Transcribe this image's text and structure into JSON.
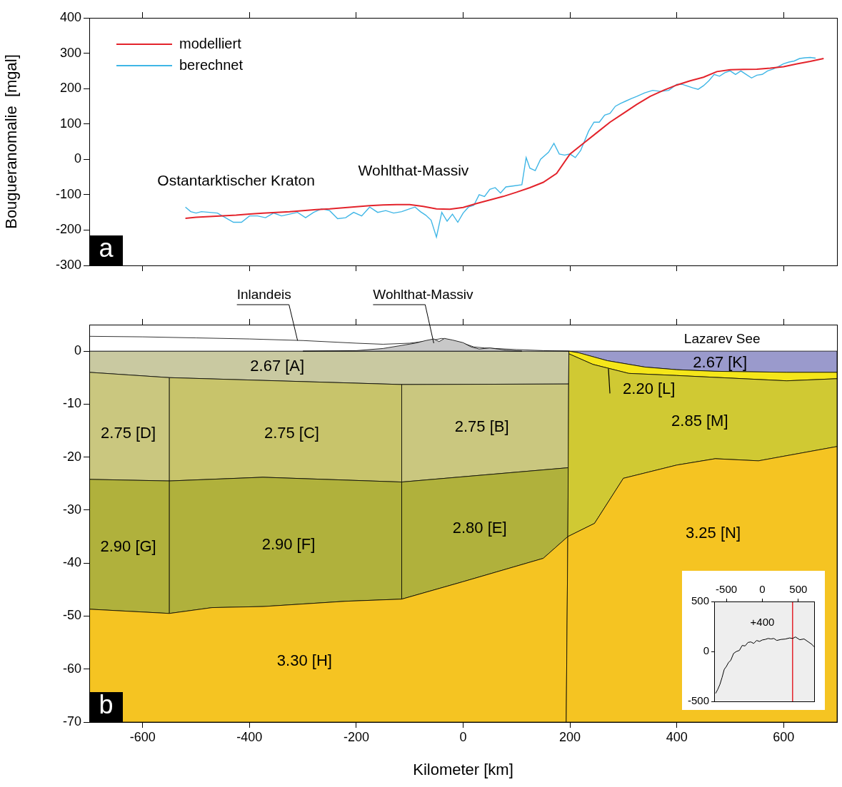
{
  "chart_data": [
    {
      "type": "line",
      "panel": "a",
      "y_label": "Bougueranomalie  [mgal]",
      "xlim": [
        -700,
        700
      ],
      "xticks": [
        -600,
        -400,
        -200,
        0,
        200,
        400,
        600
      ],
      "ylim": [
        -300,
        400
      ],
      "yticks": [
        -300,
        -200,
        -100,
        0,
        100,
        200,
        300,
        400
      ],
      "grid": false,
      "legend": "upper left",
      "tick_labels": "y",
      "series": [
        {
          "name": "modelliert",
          "color": "#e3232b",
          "x": [
            -520,
            -500,
            -475,
            -450,
            -425,
            -400,
            -375,
            -350,
            -325,
            -300,
            -275,
            -250,
            -225,
            -200,
            -175,
            -150,
            -125,
            -100,
            -75,
            -50,
            -25,
            0,
            25,
            50,
            75,
            100,
            125,
            150,
            175,
            200,
            225,
            250,
            275,
            300,
            325,
            350,
            375,
            400,
            425,
            450,
            475,
            500,
            525,
            550,
            575,
            600,
            625,
            650,
            675
          ],
          "values": [
            -167,
            -164,
            -162,
            -160,
            -158,
            -155,
            -152,
            -150,
            -148,
            -145,
            -142,
            -140,
            -137,
            -134,
            -131,
            -129,
            -128,
            -128,
            -133,
            -140,
            -141,
            -136,
            -125,
            -115,
            -105,
            -93,
            -80,
            -65,
            -40,
            15,
            45,
            75,
            105,
            130,
            155,
            178,
            195,
            210,
            222,
            232,
            248,
            253,
            254,
            255,
            258,
            262,
            270,
            277,
            285
          ]
        },
        {
          "name": "berechnet",
          "color": "#3fb6e6",
          "x": [
            -520,
            -510,
            -500,
            -490,
            -475,
            -460,
            -445,
            -430,
            -415,
            -400,
            -385,
            -370,
            -355,
            -340,
            -325,
            -310,
            -295,
            -280,
            -265,
            -250,
            -235,
            -220,
            -205,
            -190,
            -175,
            -160,
            -145,
            -130,
            -115,
            -100,
            -90,
            -80,
            -70,
            -60,
            -50,
            -40,
            -30,
            -20,
            -10,
            0,
            10,
            20,
            30,
            40,
            50,
            60,
            70,
            80,
            95,
            110,
            118,
            125,
            135,
            145,
            160,
            170,
            180,
            190,
            200,
            210,
            220,
            235,
            245,
            255,
            265,
            275,
            285,
            295,
            305,
            315,
            325,
            340,
            355,
            370,
            385,
            400,
            410,
            420,
            430,
            440,
            450,
            460,
            470,
            480,
            490,
            500,
            510,
            520,
            530,
            540,
            550,
            560,
            570,
            580,
            590,
            600,
            610,
            620,
            630,
            640,
            650,
            660
          ],
          "values": [
            -135,
            -148,
            -152,
            -148,
            -150,
            -152,
            -165,
            -178,
            -178,
            -160,
            -160,
            -165,
            -152,
            -160,
            -155,
            -150,
            -165,
            -150,
            -140,
            -145,
            -168,
            -165,
            -150,
            -160,
            -135,
            -150,
            -145,
            -152,
            -148,
            -140,
            -135,
            -148,
            -158,
            -172,
            -220,
            -150,
            -175,
            -155,
            -178,
            -152,
            -135,
            -130,
            -100,
            -105,
            -85,
            -80,
            -95,
            -78,
            -75,
            -72,
            5,
            -25,
            -32,
            0,
            20,
            45,
            15,
            12,
            15,
            5,
            25,
            80,
            105,
            105,
            125,
            130,
            150,
            158,
            165,
            172,
            178,
            188,
            195,
            192,
            195,
            212,
            212,
            207,
            202,
            198,
            208,
            222,
            240,
            235,
            245,
            250,
            240,
            250,
            240,
            230,
            238,
            240,
            250,
            255,
            262,
            270,
            275,
            278,
            285,
            287,
            288,
            286
          ]
        }
      ],
      "annotations": [
        {
          "text": "Ostantarktischer Kraton",
          "x": -425,
          "y": -62
        },
        {
          "text": "Wohlthat-Massiv",
          "x": -93,
          "y": -35
        }
      ]
    },
    {
      "type": "section",
      "panel": "b",
      "x_label": "Kilometer [km]",
      "xlim": [
        -700,
        700
      ],
      "xticks": [
        -600,
        -400,
        -200,
        0,
        200,
        400,
        600
      ],
      "ylim": [
        -70,
        5
      ],
      "yticks": [
        0,
        -10,
        -20,
        -30,
        -40,
        -50,
        -60,
        -70
      ],
      "grid": false,
      "tick_labels": true,
      "layers": [
        {
          "label": "2.67 [A]",
          "color": "#c9c9a1",
          "label_at": [
            -348,
            -3.0
          ],
          "polygon": [
            [
              -700,
              0
            ],
            [
              198,
              0
            ],
            [
              197.5,
              -6.2
            ],
            [
              -115,
              -6.3
            ],
            [
              -550,
              -5
            ],
            [
              -700,
              -4
            ]
          ]
        },
        {
          "label": "2.75 [D]",
          "color": "#cac77f",
          "label_at": [
            -627,
            -15.6
          ],
          "polygon": [
            [
              -700,
              -4
            ],
            [
              -550,
              -5
            ],
            [
              -550,
              -24.5
            ],
            [
              -700,
              -24.2
            ]
          ]
        },
        {
          "label": "2.75 [C]",
          "color": "#c8c46b",
          "label_at": [
            -321,
            -15.6
          ],
          "polygon": [
            [
              -550,
              -5
            ],
            [
              -115,
              -6.3
            ],
            [
              -115,
              -24.7
            ],
            [
              -375,
              -23.8
            ],
            [
              -550,
              -24.5
            ]
          ]
        },
        {
          "label": "2.75 [B]",
          "color": "#cac77f",
          "label_at": [
            35,
            -14.4
          ],
          "polygon": [
            [
              -115,
              -6.3
            ],
            [
              197.5,
              -6.2
            ],
            [
              197,
              -22
            ],
            [
              -115,
              -24.7
            ]
          ]
        },
        {
          "label": "2.90 [G]",
          "color": "#b0b13c",
          "label_at": [
            -627,
            -37
          ],
          "polygon": [
            [
              -700,
              -24.2
            ],
            [
              -550,
              -24.5
            ],
            [
              -550,
              -49.5
            ],
            [
              -700,
              -48.7
            ]
          ]
        },
        {
          "label": "2.90 [F]",
          "color": "#b0b13c",
          "label_at": [
            -327,
            -36.6
          ],
          "polygon": [
            [
              -550,
              -24.5
            ],
            [
              -375,
              -23.8
            ],
            [
              -115,
              -24.7
            ],
            [
              -115,
              -46.8
            ],
            [
              -220,
              -47.2
            ],
            [
              -375,
              -48.2
            ],
            [
              -470,
              -48.4
            ],
            [
              -550,
              -49.5
            ]
          ]
        },
        {
          "label": "2.80 [E]",
          "color": "#b0b13c",
          "label_at": [
            31,
            -33.5
          ],
          "polygon": [
            [
              -115,
              -24.7
            ],
            [
              197,
              -22
            ],
            [
              196,
              -35
            ],
            [
              150,
              -39.1
            ],
            [
              0,
              -43.5
            ],
            [
              -115,
              -46.8
            ]
          ]
        },
        {
          "label": "3.30 [H]",
          "color": "#f5c422",
          "label_at": [
            -297,
            -58.6
          ],
          "polygon": [
            [
              -700,
              -48.7
            ],
            [
              -550,
              -49.5
            ],
            [
              -470,
              -48.4
            ],
            [
              -375,
              -48.2
            ],
            [
              -220,
              -47.2
            ],
            [
              -115,
              -46.8
            ],
            [
              0,
              -43.5
            ],
            [
              150,
              -39.1
            ],
            [
              196,
              -35
            ],
            [
              193,
              -70
            ],
            [
              -700,
              -70
            ]
          ]
        },
        {
          "label": "2.67 [K]",
          "color": "#9a9acc",
          "label_at": [
            481,
            -2.3
          ],
          "polygon": [
            [
              198,
              0
            ],
            [
              700,
              0
            ],
            [
              700,
              -4
            ],
            [
              606,
              -4
            ],
            [
              470,
              -3.8
            ],
            [
              400,
              -3.5
            ],
            [
              340,
              -3
            ],
            [
              270,
              -1.8
            ],
            [
              216,
              -0.3
            ]
          ]
        },
        {
          "label": "2.20 [L]",
          "color": "#f5e61a",
          "label_at": [
            348,
            -7.3
          ],
          "leader_to": [
            272,
            -3.3
          ],
          "polygon": [
            [
              198,
              0
            ],
            [
              216,
              -0.3
            ],
            [
              270,
              -1.8
            ],
            [
              340,
              -3
            ],
            [
              400,
              -3.5
            ],
            [
              470,
              -3.8
            ],
            [
              606,
              -4
            ],
            [
              700,
              -4
            ],
            [
              700,
              -5.2
            ],
            [
              606,
              -5.6
            ],
            [
              400,
              -4.6
            ],
            [
              310,
              -4.2
            ],
            [
              243,
              -2.5
            ],
            [
              198,
              -0.5
            ]
          ]
        },
        {
          "label": "2.85 [M]",
          "color": "#d0c933",
          "label_at": [
            443,
            -13.3
          ],
          "polygon": [
            [
              198,
              -0.5
            ],
            [
              243,
              -2.5
            ],
            [
              310,
              -4.2
            ],
            [
              400,
              -4.6
            ],
            [
              606,
              -5.6
            ],
            [
              700,
              -5.2
            ],
            [
              700,
              -18
            ],
            [
              553,
              -20.7
            ],
            [
              472,
              -20.3
            ],
            [
              400,
              -21.5
            ],
            [
              300,
              -24
            ],
            [
              246,
              -32.5
            ],
            [
              196,
              -35
            ]
          ]
        },
        {
          "label": "3.25 [N]",
          "color": "#f5c422",
          "label_at": [
            468,
            -34.5
          ],
          "polygon": [
            [
              196,
              -35
            ],
            [
              246,
              -32.5
            ],
            [
              300,
              -24
            ],
            [
              400,
              -21.5
            ],
            [
              472,
              -20.3
            ],
            [
              553,
              -20.7
            ],
            [
              700,
              -18
            ],
            [
              700,
              -70
            ],
            [
              193,
              -70
            ]
          ]
        }
      ],
      "ice": {
        "label": "Inlandeis",
        "color": "#ffffff",
        "points_to": [
          -310,
          2.0
        ],
        "polygon": [
          [
            -700,
            0
          ],
          [
            -700,
            2.8
          ],
          [
            -600,
            2.7
          ],
          [
            -500,
            2.5
          ],
          [
            -400,
            2.3
          ],
          [
            -300,
            2.0
          ],
          [
            -200,
            1.5
          ],
          [
            -150,
            1.3
          ],
          [
            -100,
            1.5
          ],
          [
            -60,
            2.0
          ],
          [
            -40,
            2.4
          ],
          [
            -20,
            2.0
          ],
          [
            0,
            1.5
          ],
          [
            20,
            0.8
          ],
          [
            40,
            0.6
          ],
          [
            60,
            0.5
          ],
          [
            100,
            0.3
          ],
          [
            150,
            0.1
          ],
          [
            198,
            0
          ]
        ]
      },
      "rock": {
        "label": "Wohlthat-Massiv",
        "color": "#c8c8c8",
        "points_to": [
          -55,
          1.5
        ],
        "polygon": [
          [
            -300,
            0
          ],
          [
            -200,
            0.1
          ],
          [
            -150,
            0.5
          ],
          [
            -120,
            1.0
          ],
          [
            -90,
            1.5
          ],
          [
            -70,
            2.0
          ],
          [
            -55,
            2.3
          ],
          [
            -45,
            1.8
          ],
          [
            -35,
            2.4
          ],
          [
            -20,
            2.1
          ],
          [
            0,
            1.6
          ],
          [
            15,
            0.8
          ],
          [
            30,
            0.4
          ],
          [
            50,
            0.6
          ],
          [
            80,
            0.2
          ],
          [
            110,
            0
          ]
        ]
      },
      "annotations": [
        {
          "text": "Lazarev See",
          "x": 485,
          "y": 2.15
        }
      ]
    },
    {
      "type": "line",
      "xlim": [
        -670,
        720
      ],
      "xticks": [
        -500,
        0,
        500
      ],
      "ylim": [
        -500,
        500
      ],
      "yticks": [
        500,
        0,
        -500
      ],
      "grid": false,
      "tick_labels": true,
      "series": [
        {
          "color": "#000000",
          "x": [
            -650,
            -620,
            -590,
            -560,
            -530,
            -500,
            -470,
            -440,
            -400,
            -360,
            -320,
            -280,
            -240,
            -200,
            -160,
            -120,
            -80,
            -40,
            0,
            40,
            80,
            120,
            160,
            200,
            260,
            320,
            380,
            420,
            460,
            520,
            580,
            640,
            690,
            720
          ],
          "values": [
            -420,
            -380,
            -330,
            -260,
            -180,
            -150,
            -110,
            -90,
            -20,
            0,
            10,
            60,
            55,
            90,
            95,
            80,
            110,
            100,
            115,
            120,
            130,
            125,
            130,
            110,
            120,
            124,
            135,
            130,
            145,
            117,
            125,
            95,
            70,
            45
          ]
        },
        {
          "color": "#e3232b",
          "x": [
            420,
            420
          ],
          "values": [
            -500,
            500
          ]
        }
      ],
      "annotations": [
        {
          "text": "+400",
          "x": 0,
          "y": 290
        }
      ]
    }
  ]
}
